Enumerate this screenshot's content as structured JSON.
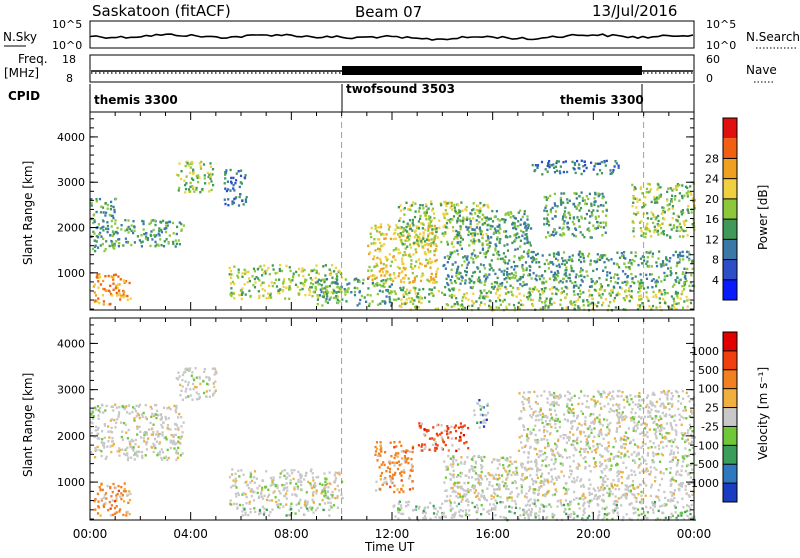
{
  "header": {
    "station": "Saskatoon (fitACF)",
    "beam": "Beam 07",
    "date": "13/Jul/2016"
  },
  "top_strips": {
    "nsky_label": "N.Sky",
    "nsky_ticks": [
      "10^5",
      "10^0"
    ],
    "nsearch_label": "N.Search",
    "nsearch_ticks": [
      "10^5",
      "10^0"
    ],
    "freq_label": [
      "Freq.",
      "[MHz]"
    ],
    "freq_ticks": [
      "18",
      "8"
    ],
    "nave_label": "Nave",
    "nave_ticks": [
      "60",
      "0"
    ],
    "cpid_label": "CPID",
    "cpid_segments": [
      {
        "name": "themis 3300",
        "start_hour": 0.0,
        "end_hour": 10.0
      },
      {
        "name": "twofsound 3503",
        "start_hour": 10.0,
        "end_hour": 22.0
      },
      {
        "name": "themis 3300",
        "start_hour": 22.0,
        "end_hour": 24.0
      }
    ]
  },
  "chart_data": [
    {
      "type": "heatmap",
      "name": "Power",
      "ylabel": "Slant Range [km]",
      "xlabel": "",
      "ylim": [
        180,
        4550
      ],
      "xlim": [
        0,
        24
      ],
      "yticks": [
        "1000",
        "2000",
        "3000",
        "4000"
      ],
      "ytick_values": [
        1000,
        2000,
        3000,
        4000
      ],
      "colorbar_label": "Power [dB]",
      "colorbar_ticks": [
        "4",
        "8",
        "12",
        "16",
        "20",
        "24",
        "28"
      ],
      "colorbar_colors": [
        "#0a1aff",
        "#2c4fc8",
        "#3a78a8",
        "#3f9a5a",
        "#8cc83a",
        "#f0d040",
        "#f0a020",
        "#f06010",
        "#e01010"
      ],
      "scatter_regions": [
        {
          "t0": 0.1,
          "t1": 1.6,
          "r0": 300,
          "r1": 1000,
          "level": 6
        },
        {
          "t0": 0.0,
          "t1": 1.0,
          "r0": 1500,
          "r1": 2700,
          "level": 3
        },
        {
          "t0": 0.9,
          "t1": 3.7,
          "r0": 1600,
          "r1": 2200,
          "level": 3
        },
        {
          "t0": 3.4,
          "t1": 4.9,
          "r0": 2800,
          "r1": 3500,
          "level": 4
        },
        {
          "t0": 5.3,
          "t1": 6.2,
          "r0": 2500,
          "r1": 3300,
          "level": 2
        },
        {
          "t0": 5.5,
          "t1": 10.0,
          "r0": 450,
          "r1": 1200,
          "level": 4
        },
        {
          "t0": 9.0,
          "t1": 12.0,
          "r0": 300,
          "r1": 900,
          "level": 3
        },
        {
          "t0": 11.0,
          "t1": 13.8,
          "r0": 800,
          "r1": 2100,
          "level": 5
        },
        {
          "t0": 12.2,
          "t1": 15.8,
          "r0": 1600,
          "r1": 2600,
          "level": 4
        },
        {
          "t0": 12.0,
          "t1": 24.0,
          "r0": 200,
          "r1": 700,
          "level": 4
        },
        {
          "t0": 14.0,
          "t1": 24.0,
          "r0": 700,
          "r1": 1500,
          "level": 3
        },
        {
          "t0": 14.5,
          "t1": 17.5,
          "r0": 1500,
          "r1": 2400,
          "level": 3
        },
        {
          "t0": 18.0,
          "t1": 20.5,
          "r0": 1800,
          "r1": 2800,
          "level": 3
        },
        {
          "t0": 21.5,
          "t1": 24.0,
          "r0": 1800,
          "r1": 3000,
          "level": 4
        },
        {
          "t0": 17.5,
          "t1": 21.0,
          "r0": 3200,
          "r1": 3500,
          "level": 2
        }
      ]
    },
    {
      "type": "heatmap",
      "name": "Velocity",
      "ylabel": "Slant Range [km]",
      "xlabel": "Time UT",
      "ylim": [
        180,
        4550
      ],
      "xlim": [
        0,
        24
      ],
      "yticks": [
        "1000",
        "2000",
        "3000",
        "4000"
      ],
      "ytick_values": [
        1000,
        2000,
        3000,
        4000
      ],
      "xticks": [
        "00:00",
        "04:00",
        "08:00",
        "12:00",
        "16:00",
        "20:00",
        "00:00"
      ],
      "colorbar_label": "Velocity [m s⁻¹]",
      "colorbar_ticks": [
        "1000",
        "500",
        "100",
        "25",
        "-25",
        "-100",
        "-500",
        "-1000"
      ],
      "colorbar_colors": [
        "#1a3cc0",
        "#2e78c0",
        "#3a9e5a",
        "#6ec83a",
        "#c8c8c8",
        "#f0b040",
        "#f08020",
        "#f04010",
        "#e00000"
      ],
      "scatter_regions": [
        {
          "t0": 0.1,
          "t1": 1.6,
          "r0": 300,
          "r1": 1000,
          "class": 6
        },
        {
          "t0": 0.0,
          "t1": 3.7,
          "r0": 1500,
          "r1": 2700,
          "class": 4
        },
        {
          "t0": 3.4,
          "t1": 5.0,
          "r0": 2800,
          "r1": 3500,
          "class": 4
        },
        {
          "t0": 5.5,
          "t1": 10.0,
          "r0": 450,
          "r1": 1300,
          "class": 4
        },
        {
          "t0": 6.0,
          "t1": 9.5,
          "r0": 300,
          "r1": 450,
          "class": 3
        },
        {
          "t0": 11.3,
          "t1": 12.8,
          "r0": 800,
          "r1": 1900,
          "class": 6
        },
        {
          "t0": 13.0,
          "t1": 15.0,
          "r0": 1700,
          "r1": 2300,
          "class": 7
        },
        {
          "t0": 12.0,
          "t1": 24.0,
          "r0": 200,
          "r1": 600,
          "class": 3
        },
        {
          "t0": 14.0,
          "t1": 24.0,
          "r0": 600,
          "r1": 1600,
          "class": 4
        },
        {
          "t0": 17.0,
          "t1": 24.0,
          "r0": 1600,
          "r1": 3000,
          "class": 4
        },
        {
          "t0": 15.2,
          "t1": 15.8,
          "r0": 2200,
          "r1": 2800,
          "class": 1
        }
      ]
    }
  ]
}
